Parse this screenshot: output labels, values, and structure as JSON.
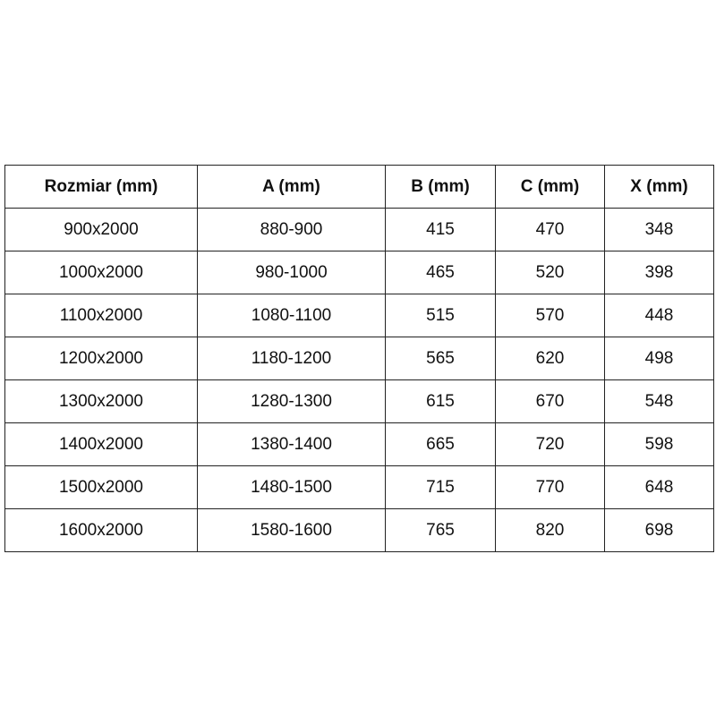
{
  "table": {
    "headers": [
      "Rozmiar (mm)",
      "A (mm)",
      "B (mm)",
      "C (mm)",
      "X (mm)"
    ],
    "rows": [
      [
        "900x2000",
        "880-900",
        "415",
        "470",
        "348"
      ],
      [
        "1000x2000",
        "980-1000",
        "465",
        "520",
        "398"
      ],
      [
        "1100x2000",
        "1080-1100",
        "515",
        "570",
        "448"
      ],
      [
        "1200x2000",
        "1180-1200",
        "565",
        "620",
        "498"
      ],
      [
        "1300x2000",
        "1280-1300",
        "615",
        "670",
        "548"
      ],
      [
        "1400x2000",
        "1380-1400",
        "665",
        "720",
        "598"
      ],
      [
        "1500x2000",
        "1480-1500",
        "715",
        "770",
        "648"
      ],
      [
        "1600x2000",
        "1580-1600",
        "765",
        "820",
        "698"
      ]
    ]
  }
}
